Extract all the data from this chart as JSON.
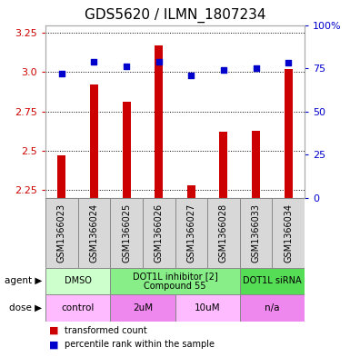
{
  "title": "GDS5620 / ILMN_1807234",
  "samples": [
    "GSM1366023",
    "GSM1366024",
    "GSM1366025",
    "GSM1366026",
    "GSM1366027",
    "GSM1366028",
    "GSM1366033",
    "GSM1366034"
  ],
  "bar_values": [
    2.47,
    2.92,
    2.81,
    3.17,
    2.28,
    2.62,
    2.63,
    3.02
  ],
  "dot_values": [
    72,
    79,
    76,
    79,
    71,
    74,
    75,
    78
  ],
  "ylim_left": [
    2.2,
    3.3
  ],
  "ylim_right": [
    0,
    100
  ],
  "yticks_left": [
    2.25,
    2.5,
    2.75,
    3.0,
    3.25
  ],
  "ytick_labels_right": [
    "0",
    "25",
    "50",
    "75",
    "100%"
  ],
  "yticks_right": [
    0,
    25,
    50,
    75,
    100
  ],
  "bar_color": "#cc0000",
  "dot_color": "#0000cc",
  "agent_row": [
    {
      "label": "DMSO",
      "start": 0,
      "end": 2,
      "color": "#ccffcc"
    },
    {
      "label": "DOT1L inhibitor [2]\nCompound 55",
      "start": 2,
      "end": 6,
      "color": "#88ee88"
    },
    {
      "label": "DOT1L siRNA",
      "start": 6,
      "end": 8,
      "color": "#55dd55"
    }
  ],
  "dose_row": [
    {
      "label": "control",
      "start": 0,
      "end": 2,
      "color": "#ffbbff"
    },
    {
      "label": "2uM",
      "start": 2,
      "end": 4,
      "color": "#ee88ee"
    },
    {
      "label": "10uM",
      "start": 4,
      "end": 6,
      "color": "#ffbbff"
    },
    {
      "label": "n/a",
      "start": 6,
      "end": 8,
      "color": "#ee88ee"
    }
  ],
  "legend_items": [
    {
      "color": "#cc0000",
      "label": "transformed count"
    },
    {
      "color": "#0000cc",
      "label": "percentile rank within the sample"
    }
  ],
  "left_ylabel_color": "#cc0000",
  "right_ylabel_color": "#0000cc",
  "title_fontsize": 11,
  "tick_fontsize": 8,
  "sample_fontsize": 7,
  "bar_width": 0.25
}
